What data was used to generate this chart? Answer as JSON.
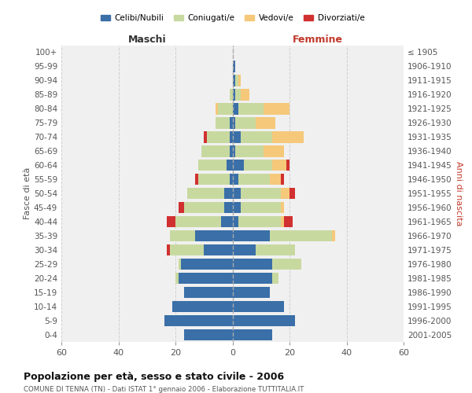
{
  "age_groups": [
    "0-4",
    "5-9",
    "10-14",
    "15-19",
    "20-24",
    "25-29",
    "30-34",
    "35-39",
    "40-44",
    "45-49",
    "50-54",
    "55-59",
    "60-64",
    "65-69",
    "70-74",
    "75-79",
    "80-84",
    "85-89",
    "90-94",
    "95-99",
    "100+"
  ],
  "birth_years": [
    "2001-2005",
    "1996-2000",
    "1991-1995",
    "1986-1990",
    "1981-1985",
    "1976-1980",
    "1971-1975",
    "1966-1970",
    "1961-1965",
    "1956-1960",
    "1951-1955",
    "1946-1950",
    "1941-1945",
    "1936-1940",
    "1931-1935",
    "1926-1930",
    "1921-1925",
    "1916-1920",
    "1911-1915",
    "1906-1910",
    "≤ 1905"
  ],
  "male": {
    "celibe": [
      17,
      24,
      21,
      17,
      19,
      18,
      10,
      13,
      4,
      3,
      3,
      1,
      2,
      1,
      1,
      1,
      0,
      0,
      0,
      0,
      0
    ],
    "coniugato": [
      0,
      0,
      0,
      0,
      1,
      1,
      12,
      9,
      16,
      14,
      13,
      11,
      10,
      10,
      8,
      5,
      5,
      1,
      0,
      0,
      0
    ],
    "vedovo": [
      0,
      0,
      0,
      0,
      0,
      0,
      0,
      0,
      0,
      0,
      0,
      0,
      0,
      0,
      0,
      0,
      1,
      0,
      0,
      0,
      0
    ],
    "divorziato": [
      0,
      0,
      0,
      0,
      0,
      0,
      1,
      0,
      3,
      2,
      0,
      1,
      0,
      0,
      1,
      0,
      0,
      0,
      0,
      0,
      0
    ]
  },
  "female": {
    "nubile": [
      14,
      22,
      18,
      13,
      14,
      14,
      8,
      13,
      2,
      3,
      3,
      2,
      4,
      1,
      3,
      1,
      2,
      1,
      1,
      1,
      0
    ],
    "coniugata": [
      0,
      0,
      0,
      0,
      2,
      10,
      14,
      22,
      15,
      14,
      14,
      11,
      10,
      10,
      11,
      7,
      9,
      2,
      1,
      0,
      0
    ],
    "vedova": [
      0,
      0,
      0,
      0,
      0,
      0,
      0,
      1,
      1,
      1,
      3,
      4,
      5,
      7,
      11,
      7,
      9,
      3,
      1,
      0,
      0
    ],
    "divorziata": [
      0,
      0,
      0,
      0,
      0,
      0,
      0,
      0,
      3,
      0,
      2,
      1,
      1,
      0,
      0,
      0,
      0,
      0,
      0,
      0,
      0
    ]
  },
  "colors": {
    "celibe_nubile": "#3a6fa8",
    "coniugato": "#c8d9a0",
    "vedovo": "#f5c87a",
    "divorziato": "#d13030"
  },
  "xlim": 60,
  "title": "Popolazione per età, sesso e stato civile - 2006",
  "subtitle": "COMUNE DI TENNA (TN) - Dati ISTAT 1° gennaio 2006 - Elaborazione TUTTITALIA.IT",
  "ylabel_left": "Fasce di età",
  "ylabel_right": "Anni di nascita",
  "xlabel_male": "Maschi",
  "xlabel_female": "Femmine",
  "legend_labels": [
    "Celibi/Nubili",
    "Coniugati/e",
    "Vedovi/e",
    "Divorziati/e"
  ],
  "bg_color": "#f0f0f0",
  "grid_color": "#cccccc"
}
